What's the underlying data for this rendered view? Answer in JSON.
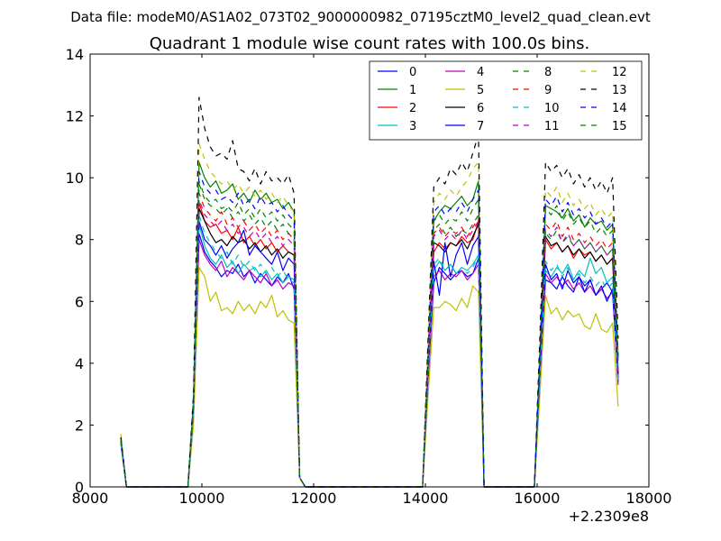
{
  "figure": {
    "suptitle": "Data file: modeM0/AS1A02_073T02_9000000982_07195cztM0_level2_quad_clean.evt",
    "offset_label": "+2.2309e8"
  },
  "chart_data": {
    "type": "line",
    "title": "Quadrant 1 module wise count rates with 100.0s bins.",
    "xlabel": "",
    "ylabel": "",
    "xlim": [
      8000,
      18000
    ],
    "ylim": [
      0,
      14
    ],
    "xticks": [
      8000,
      10000,
      12000,
      14000,
      16000,
      18000
    ],
    "yticks": [
      0,
      2,
      4,
      6,
      8,
      10,
      12,
      14
    ],
    "x_offset": 223090000,
    "grid": false,
    "legend": {
      "position": "top-right",
      "columns": 4
    },
    "x": [
      8550,
      8650,
      9750,
      9850,
      9950,
      10050,
      10150,
      10250,
      10350,
      10450,
      10550,
      10650,
      10750,
      10850,
      10950,
      11050,
      11150,
      11250,
      11350,
      11450,
      11550,
      11650,
      11750,
      11850,
      13950,
      14050,
      14150,
      14250,
      14350,
      14450,
      14550,
      14650,
      14750,
      14850,
      14950,
      15050,
      15950,
      16050,
      16150,
      16250,
      16350,
      16450,
      16550,
      16650,
      16750,
      16850,
      16950,
      17050,
      17150,
      17250,
      17350,
      17450
    ],
    "series": [
      {
        "name": "0",
        "color": "#0000ff",
        "style": "solid",
        "values": [
          1.5,
          0,
          0,
          2.5,
          8.2,
          7.6,
          7.3,
          7.1,
          6.8,
          7.0,
          6.9,
          7.2,
          6.8,
          7.0,
          6.6,
          6.9,
          6.7,
          6.5,
          6.8,
          6.6,
          6.9,
          6.4,
          0.3,
          0,
          0,
          3.5,
          6.6,
          7.1,
          6.9,
          6.7,
          6.9,
          7.0,
          6.8,
          6.9,
          7.4,
          0,
          0,
          3.5,
          6.7,
          6.6,
          6.4,
          6.8,
          6.5,
          6.3,
          6.8,
          6.5,
          6.7,
          6.2,
          6.4,
          6.6,
          6.3,
          3.4
        ]
      },
      {
        "name": "1",
        "color": "#008000",
        "style": "solid",
        "values": [
          1.6,
          0,
          0,
          2.8,
          10.5,
          10.0,
          9.7,
          9.9,
          9.5,
          9.6,
          9.8,
          9.3,
          9.5,
          9.2,
          9.6,
          9.3,
          9.5,
          9.2,
          9.3,
          9.0,
          9.2,
          8.9,
          0.3,
          0,
          0,
          4.4,
          8.6,
          8.9,
          9.1,
          9.0,
          9.2,
          9.4,
          9.1,
          9.3,
          9.9,
          0,
          0,
          4.4,
          9.1,
          9.0,
          8.9,
          8.7,
          9.0,
          8.6,
          8.8,
          8.4,
          8.7,
          8.5,
          8.6,
          8.3,
          8.5,
          4.2
        ]
      },
      {
        "name": "2",
        "color": "#ff0000",
        "style": "solid",
        "values": [
          1.5,
          0,
          0,
          2.5,
          9.2,
          8.6,
          8.4,
          8.5,
          8.2,
          8.3,
          8.0,
          8.4,
          7.9,
          8.1,
          7.8,
          8.0,
          7.7,
          7.9,
          7.6,
          7.8,
          7.6,
          7.5,
          0.3,
          0,
          0,
          3.8,
          7.6,
          7.9,
          7.7,
          7.9,
          7.8,
          8.1,
          7.9,
          8.0,
          8.6,
          0,
          0,
          3.8,
          8.0,
          7.7,
          7.9,
          7.6,
          7.8,
          7.4,
          7.7,
          7.5,
          7.6,
          7.3,
          7.5,
          7.2,
          7.4,
          3.7
        ]
      },
      {
        "name": "3",
        "color": "#00bfbf",
        "style": "solid",
        "values": [
          1.4,
          0,
          0,
          2.4,
          8.5,
          7.8,
          7.4,
          7.2,
          7.5,
          7.1,
          7.3,
          6.9,
          7.2,
          7.0,
          7.1,
          6.8,
          7.0,
          6.7,
          6.9,
          6.6,
          6.8,
          6.7,
          0.3,
          0,
          0,
          3.6,
          7.0,
          7.3,
          7.0,
          7.2,
          6.9,
          7.1,
          7.0,
          7.2,
          7.5,
          0,
          0,
          3.6,
          7.0,
          6.8,
          7.1,
          6.9,
          7.2,
          6.7,
          7.0,
          6.8,
          7.4,
          6.9,
          7.1,
          6.6,
          6.8,
          3.5
        ]
      },
      {
        "name": "4",
        "color": "#bf00bf",
        "style": "solid",
        "values": [
          1.4,
          0,
          0,
          2.4,
          8.0,
          7.5,
          7.2,
          7.0,
          7.3,
          6.8,
          7.1,
          6.9,
          6.7,
          7.0,
          6.8,
          6.6,
          6.9,
          6.5,
          6.7,
          6.4,
          6.6,
          6.5,
          0.3,
          0,
          0,
          3.5,
          6.8,
          7.0,
          6.7,
          6.9,
          6.8,
          7.0,
          6.7,
          6.9,
          7.2,
          0,
          0,
          3.5,
          6.9,
          6.6,
          6.8,
          6.5,
          6.7,
          6.4,
          6.6,
          6.3,
          6.5,
          6.2,
          6.4,
          6.1,
          6.3,
          3.3
        ]
      },
      {
        "name": "5",
        "color": "#bfbf00",
        "style": "solid",
        "values": [
          1.7,
          0,
          0,
          2.0,
          7.1,
          6.8,
          6.0,
          6.3,
          5.7,
          5.8,
          5.6,
          6.0,
          5.7,
          5.9,
          5.6,
          6.0,
          5.8,
          6.2,
          5.5,
          5.7,
          5.4,
          5.3,
          0.3,
          0,
          0,
          3.0,
          5.8,
          5.8,
          6.0,
          5.9,
          5.7,
          6.1,
          5.8,
          6.5,
          6.3,
          0,
          0,
          3.0,
          6.2,
          5.6,
          5.8,
          5.4,
          5.7,
          5.5,
          5.6,
          5.2,
          5.1,
          5.6,
          5.1,
          5.0,
          5.3,
          2.6
        ]
      },
      {
        "name": "6",
        "color": "#000000",
        "style": "solid",
        "values": [
          1.5,
          0,
          0,
          2.6,
          9.0,
          8.6,
          8.2,
          7.9,
          8.0,
          7.8,
          8.1,
          7.9,
          8.0,
          7.7,
          7.9,
          7.6,
          7.8,
          7.5,
          7.7,
          7.4,
          7.6,
          7.5,
          0.3,
          0,
          0,
          3.9,
          7.9,
          7.8,
          7.6,
          7.9,
          7.8,
          8.0,
          7.7,
          8.1,
          8.5,
          0,
          0,
          3.9,
          8.1,
          7.8,
          7.9,
          7.6,
          7.8,
          7.5,
          7.7,
          7.4,
          7.6,
          7.3,
          7.5,
          7.2,
          7.4,
          3.6
        ]
      },
      {
        "name": "7",
        "color": "#0000ff",
        "style": "solid",
        "values": [
          1.5,
          0,
          0,
          2.6,
          8.6,
          8.0,
          7.8,
          7.5,
          7.8,
          7.4,
          7.7,
          7.9,
          8.3,
          7.5,
          7.8,
          7.6,
          7.4,
          7.2,
          7.6,
          7.0,
          7.4,
          7.2,
          0.3,
          0,
          0,
          3.7,
          7.3,
          6.2,
          7.9,
          6.8,
          7.5,
          7.9,
          7.2,
          7.8,
          8.1,
          0,
          0,
          3.7,
          7.2,
          6.7,
          6.9,
          6.4,
          7.0,
          6.6,
          6.8,
          6.3,
          6.7,
          6.2,
          6.5,
          6.0,
          6.4,
          3.5
        ]
      },
      {
        "name": "8",
        "color": "#008000",
        "style": "dashed",
        "values": [
          1.5,
          0,
          0,
          2.7,
          9.8,
          9.3,
          9.1,
          9.0,
          8.8,
          9.0,
          8.7,
          8.9,
          8.6,
          8.8,
          8.5,
          8.7,
          8.4,
          8.6,
          8.3,
          8.5,
          8.2,
          8.0,
          0.3,
          0,
          0,
          4.1,
          8.3,
          8.5,
          8.2,
          8.4,
          8.1,
          8.3,
          8.2,
          8.5,
          8.8,
          0,
          0,
          4.1,
          8.2,
          8.0,
          8.3,
          7.9,
          8.1,
          7.8,
          8.0,
          7.7,
          7.9,
          7.6,
          7.8,
          7.5,
          7.7,
          3.8
        ]
      },
      {
        "name": "9",
        "color": "#ff0000",
        "style": "dashed",
        "values": [
          1.5,
          0,
          0,
          2.7,
          9.5,
          9.0,
          8.8,
          8.6,
          8.9,
          8.5,
          8.7,
          8.4,
          8.6,
          8.3,
          8.5,
          8.2,
          8.4,
          8.1,
          8.3,
          8.0,
          8.2,
          8.0,
          0.3,
          0,
          0,
          4.0,
          8.2,
          8.4,
          8.1,
          8.3,
          8.2,
          8.4,
          8.1,
          8.4,
          8.7,
          0,
          0,
          4.0,
          8.5,
          8.3,
          8.6,
          8.1,
          8.4,
          8.0,
          8.2,
          7.9,
          8.1,
          7.8,
          8.0,
          7.7,
          7.9,
          3.8
        ]
      },
      {
        "name": "10",
        "color": "#00bfbf",
        "style": "dashed",
        "values": [
          1.4,
          0,
          0,
          2.5,
          8.8,
          8.2,
          7.9,
          7.6,
          7.4,
          7.6,
          7.2,
          7.5,
          7.1,
          7.3,
          7.0,
          7.2,
          6.9,
          7.1,
          6.8,
          7.0,
          6.7,
          6.6,
          0.3,
          0,
          0,
          3.6,
          7.2,
          7.4,
          7.0,
          7.2,
          6.9,
          7.1,
          6.9,
          7.1,
          7.5,
          0,
          0,
          3.6,
          7.3,
          7.0,
          7.2,
          6.8,
          7.1,
          6.7,
          6.9,
          6.6,
          6.8,
          6.5,
          6.7,
          6.4,
          6.6,
          3.4
        ]
      },
      {
        "name": "11",
        "color": "#bf00bf",
        "style": "dashed",
        "values": [
          1.5,
          0,
          0,
          2.6,
          9.3,
          8.8,
          8.6,
          8.4,
          8.6,
          8.3,
          8.5,
          8.2,
          8.4,
          8.1,
          8.3,
          8.0,
          8.2,
          7.9,
          8.1,
          7.8,
          8.0,
          7.8,
          0.3,
          0,
          0,
          3.9,
          8.1,
          8.3,
          8.0,
          8.2,
          8.0,
          8.3,
          8.0,
          8.3,
          8.6,
          0,
          0,
          3.9,
          8.3,
          8.1,
          8.4,
          7.9,
          8.2,
          7.8,
          8.0,
          7.7,
          7.9,
          7.6,
          7.8,
          7.5,
          7.7,
          3.7
        ]
      },
      {
        "name": "12",
        "color": "#bfbf00",
        "style": "dashed",
        "values": [
          1.6,
          0,
          0,
          2.9,
          11.1,
          10.6,
          10.2,
          10.0,
          9.8,
          9.9,
          9.6,
          9.8,
          9.5,
          9.7,
          9.4,
          9.6,
          9.3,
          9.5,
          9.2,
          9.4,
          9.1,
          8.9,
          0.3,
          0,
          0,
          4.6,
          9.2,
          9.5,
          9.3,
          9.6,
          9.4,
          9.7,
          9.9,
          10.3,
          10.5,
          0,
          0,
          4.6,
          9.6,
          9.4,
          9.7,
          9.2,
          9.5,
          9.1,
          9.3,
          9.0,
          9.2,
          8.8,
          9.0,
          8.7,
          8.9,
          4.3
        ]
      },
      {
        "name": "13",
        "color": "#000000",
        "style": "dashed",
        "values": [
          1.6,
          0,
          0,
          3.0,
          12.6,
          11.6,
          11.0,
          10.7,
          10.8,
          10.6,
          11.2,
          10.3,
          10.2,
          9.9,
          10.3,
          9.8,
          10.2,
          9.9,
          10.0,
          9.8,
          10.1,
          9.5,
          0.3,
          0,
          0,
          4.9,
          9.7,
          10.0,
          9.8,
          10.3,
          10.1,
          10.5,
          10.2,
          10.8,
          11.4,
          0,
          0,
          4.9,
          10.5,
          10.2,
          10.4,
          10.0,
          10.3,
          9.8,
          10.1,
          9.7,
          10.0,
          9.6,
          9.9,
          9.5,
          10.0,
          4.8
        ]
      },
      {
        "name": "14",
        "color": "#0000ff",
        "style": "dashed",
        "values": [
          1.5,
          0,
          0,
          2.8,
          10.2,
          9.7,
          9.5,
          9.6,
          9.3,
          9.4,
          9.2,
          9.5,
          9.1,
          9.3,
          9.0,
          9.4,
          9.1,
          9.2,
          8.9,
          9.1,
          8.8,
          8.6,
          0.3,
          0,
          0,
          4.3,
          8.9,
          9.1,
          8.8,
          9.0,
          8.9,
          9.2,
          8.9,
          9.3,
          9.6,
          0,
          0,
          4.3,
          9.3,
          9.1,
          9.4,
          8.9,
          9.2,
          8.8,
          9.0,
          8.7,
          8.9,
          8.5,
          8.7,
          8.4,
          8.6,
          4.1
        ]
      },
      {
        "name": "15",
        "color": "#008000",
        "style": "dashed",
        "values": [
          1.5,
          0,
          0,
          2.7,
          9.9,
          9.4,
          9.2,
          9.3,
          9.0,
          9.1,
          8.9,
          9.2,
          8.8,
          9.0,
          8.7,
          9.0,
          8.7,
          8.9,
          8.6,
          8.8,
          8.5,
          8.3,
          0.3,
          0,
          0,
          4.2,
          8.6,
          8.8,
          8.5,
          8.7,
          8.6,
          8.9,
          8.6,
          9.0,
          9.3,
          0,
          0,
          4.2,
          9.0,
          8.8,
          9.1,
          8.6,
          8.9,
          8.5,
          8.7,
          8.4,
          8.6,
          8.2,
          8.4,
          8.1,
          8.3,
          4.0
        ]
      }
    ]
  }
}
